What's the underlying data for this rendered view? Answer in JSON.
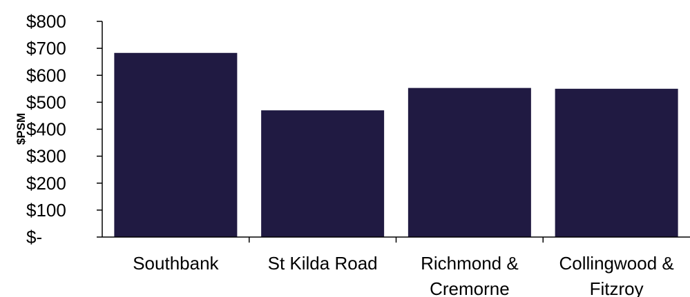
{
  "chart_data": {
    "type": "bar",
    "categories": [
      [
        "Southbank"
      ],
      [
        "St Kilda Road"
      ],
      [
        "Richmond &",
        "Cremorne"
      ],
      [
        "Collingwood &",
        "Fitzroy"
      ]
    ],
    "values": [
      683,
      470,
      553,
      550
    ],
    "ylabel": "$PSM",
    "ylim": [
      0,
      800
    ],
    "yticks": [
      0,
      100,
      200,
      300,
      400,
      500,
      600,
      700,
      800
    ],
    "ytick_labels": [
      "$-",
      "$100",
      "$200",
      "$300",
      "$400",
      "$500",
      "$600",
      "$700",
      "$800"
    ],
    "grid": false,
    "legend": "none",
    "bar_color": "#201a42"
  }
}
